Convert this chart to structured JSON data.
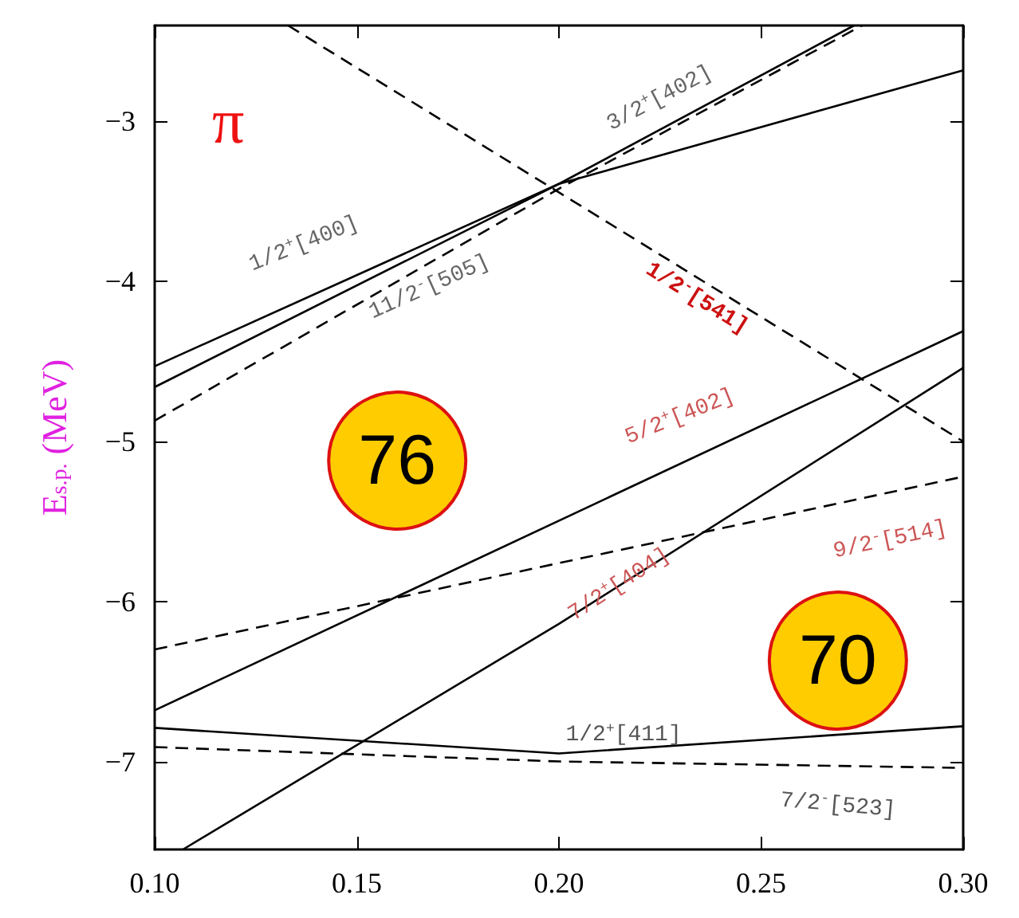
{
  "chart_data": {
    "type": "line",
    "ylabel": "E$_{s.p.}$ (MeV)",
    "xlim": [
      0.1,
      0.3
    ],
    "ylim": [
      -7.55,
      -2.4
    ],
    "xticks": [
      {
        "value": 0.1,
        "label": "0.10"
      },
      {
        "value": 0.15,
        "label": "0.15"
      },
      {
        "value": 0.2,
        "label": "0.20"
      },
      {
        "value": 0.25,
        "label": "0.25"
      },
      {
        "value": 0.3,
        "label": "0.30"
      }
    ],
    "yticks": [
      -7,
      -6,
      -5,
      -4,
      -3
    ],
    "grid": false,
    "legend": false,
    "marker": "none",
    "series": [
      {
        "name": "1/2$^{+}$[400]",
        "color": "#000000",
        "line_style": "solid",
        "x": [
          0.1,
          0.2,
          0.3
        ],
        "values": [
          -4.53,
          -3.39,
          -2.68
        ]
      },
      {
        "name": "3/2$^{+}$[402]",
        "color": "#000000",
        "line_style": "solid",
        "x": [
          0.1,
          0.2,
          0.273
        ],
        "values": [
          -4.66,
          -3.39,
          -2.4
        ]
      },
      {
        "name": "11/2$^{-}$[505]",
        "color": "#000000",
        "line_style": "dashed",
        "x": [
          0.1,
          0.2,
          0.275
        ],
        "values": [
          -4.87,
          -3.42,
          -2.4
        ]
      },
      {
        "name": "1/2$^{-}$[541]",
        "color": "#000000",
        "line_style": "dashed",
        "x": [
          0.133,
          0.3
        ],
        "values": [
          -2.4,
          -5.0
        ]
      },
      {
        "name": "5/2$^{+}$[402]",
        "color": "#000000",
        "line_style": "solid",
        "x": [
          0.1,
          0.3
        ],
        "values": [
          -6.68,
          -4.31
        ]
      },
      {
        "name": "9/2$^{-}$[514]",
        "color": "#000000",
        "line_style": "dashed",
        "x": [
          0.1,
          0.3
        ],
        "values": [
          -6.3,
          -5.22
        ]
      },
      {
        "name": "7/2$^{+}$[404]",
        "color": "#000000",
        "line_style": "solid",
        "x": [
          0.107,
          0.2,
          0.3
        ],
        "values": [
          -7.55,
          -6.14,
          -4.54
        ]
      },
      {
        "name": "1/2$^{+}$[411]",
        "color": "#000000",
        "line_style": "solid",
        "x": [
          0.1,
          0.2,
          0.3
        ],
        "values": [
          -6.79,
          -6.95,
          -6.78
        ]
      },
      {
        "name": "7/2$^{-}$[523]",
        "color": "#000000",
        "line_style": "dashed",
        "x": [
          0.1,
          0.2,
          0.3
        ],
        "values": [
          -6.91,
          -7.0,
          -7.04
        ]
      }
    ],
    "annotations": [
      "π",
      "76",
      "70"
    ]
  }
}
